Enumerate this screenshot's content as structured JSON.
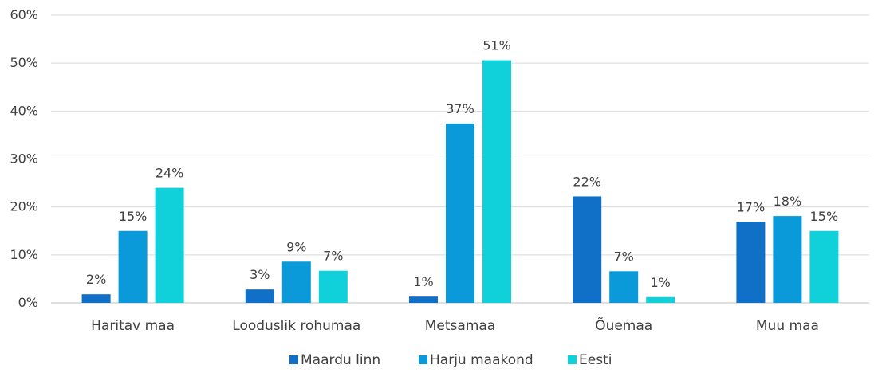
{
  "chart_data": {
    "type": "bar",
    "title": "",
    "xlabel": "",
    "ylabel": "",
    "ylim": [
      0,
      60
    ],
    "yticks": [
      "0%",
      "10%",
      "20%",
      "30%",
      "40%",
      "50%",
      "60%"
    ],
    "ytick_values": [
      0,
      10,
      20,
      30,
      40,
      50,
      60
    ],
    "grid": true,
    "legend_position": "bottom",
    "categories": [
      "Haritav maa",
      "Looduslik rohumaa",
      "Metsamaa",
      "Õuemaa",
      "Muu maa"
    ],
    "series": [
      {
        "name": "Maardu linn",
        "color": "#1070C8",
        "values": [
          1.8,
          2.8,
          1.3,
          22.2,
          16.9
        ],
        "labels": [
          "2%",
          "3%",
          "1%",
          "22%",
          "17%"
        ]
      },
      {
        "name": "Harju maakond",
        "color": "#0B9AD9",
        "values": [
          15.0,
          8.6,
          37.4,
          6.6,
          18.1
        ],
        "labels": [
          "15%",
          "9%",
          "37%",
          "7%",
          "18%"
        ]
      },
      {
        "name": "Eesti",
        "color": "#10D0DA",
        "values": [
          24.0,
          6.7,
          50.6,
          1.2,
          15.0
        ],
        "labels": [
          "24%",
          "7%",
          "51%",
          "1%",
          "15%"
        ]
      }
    ]
  }
}
